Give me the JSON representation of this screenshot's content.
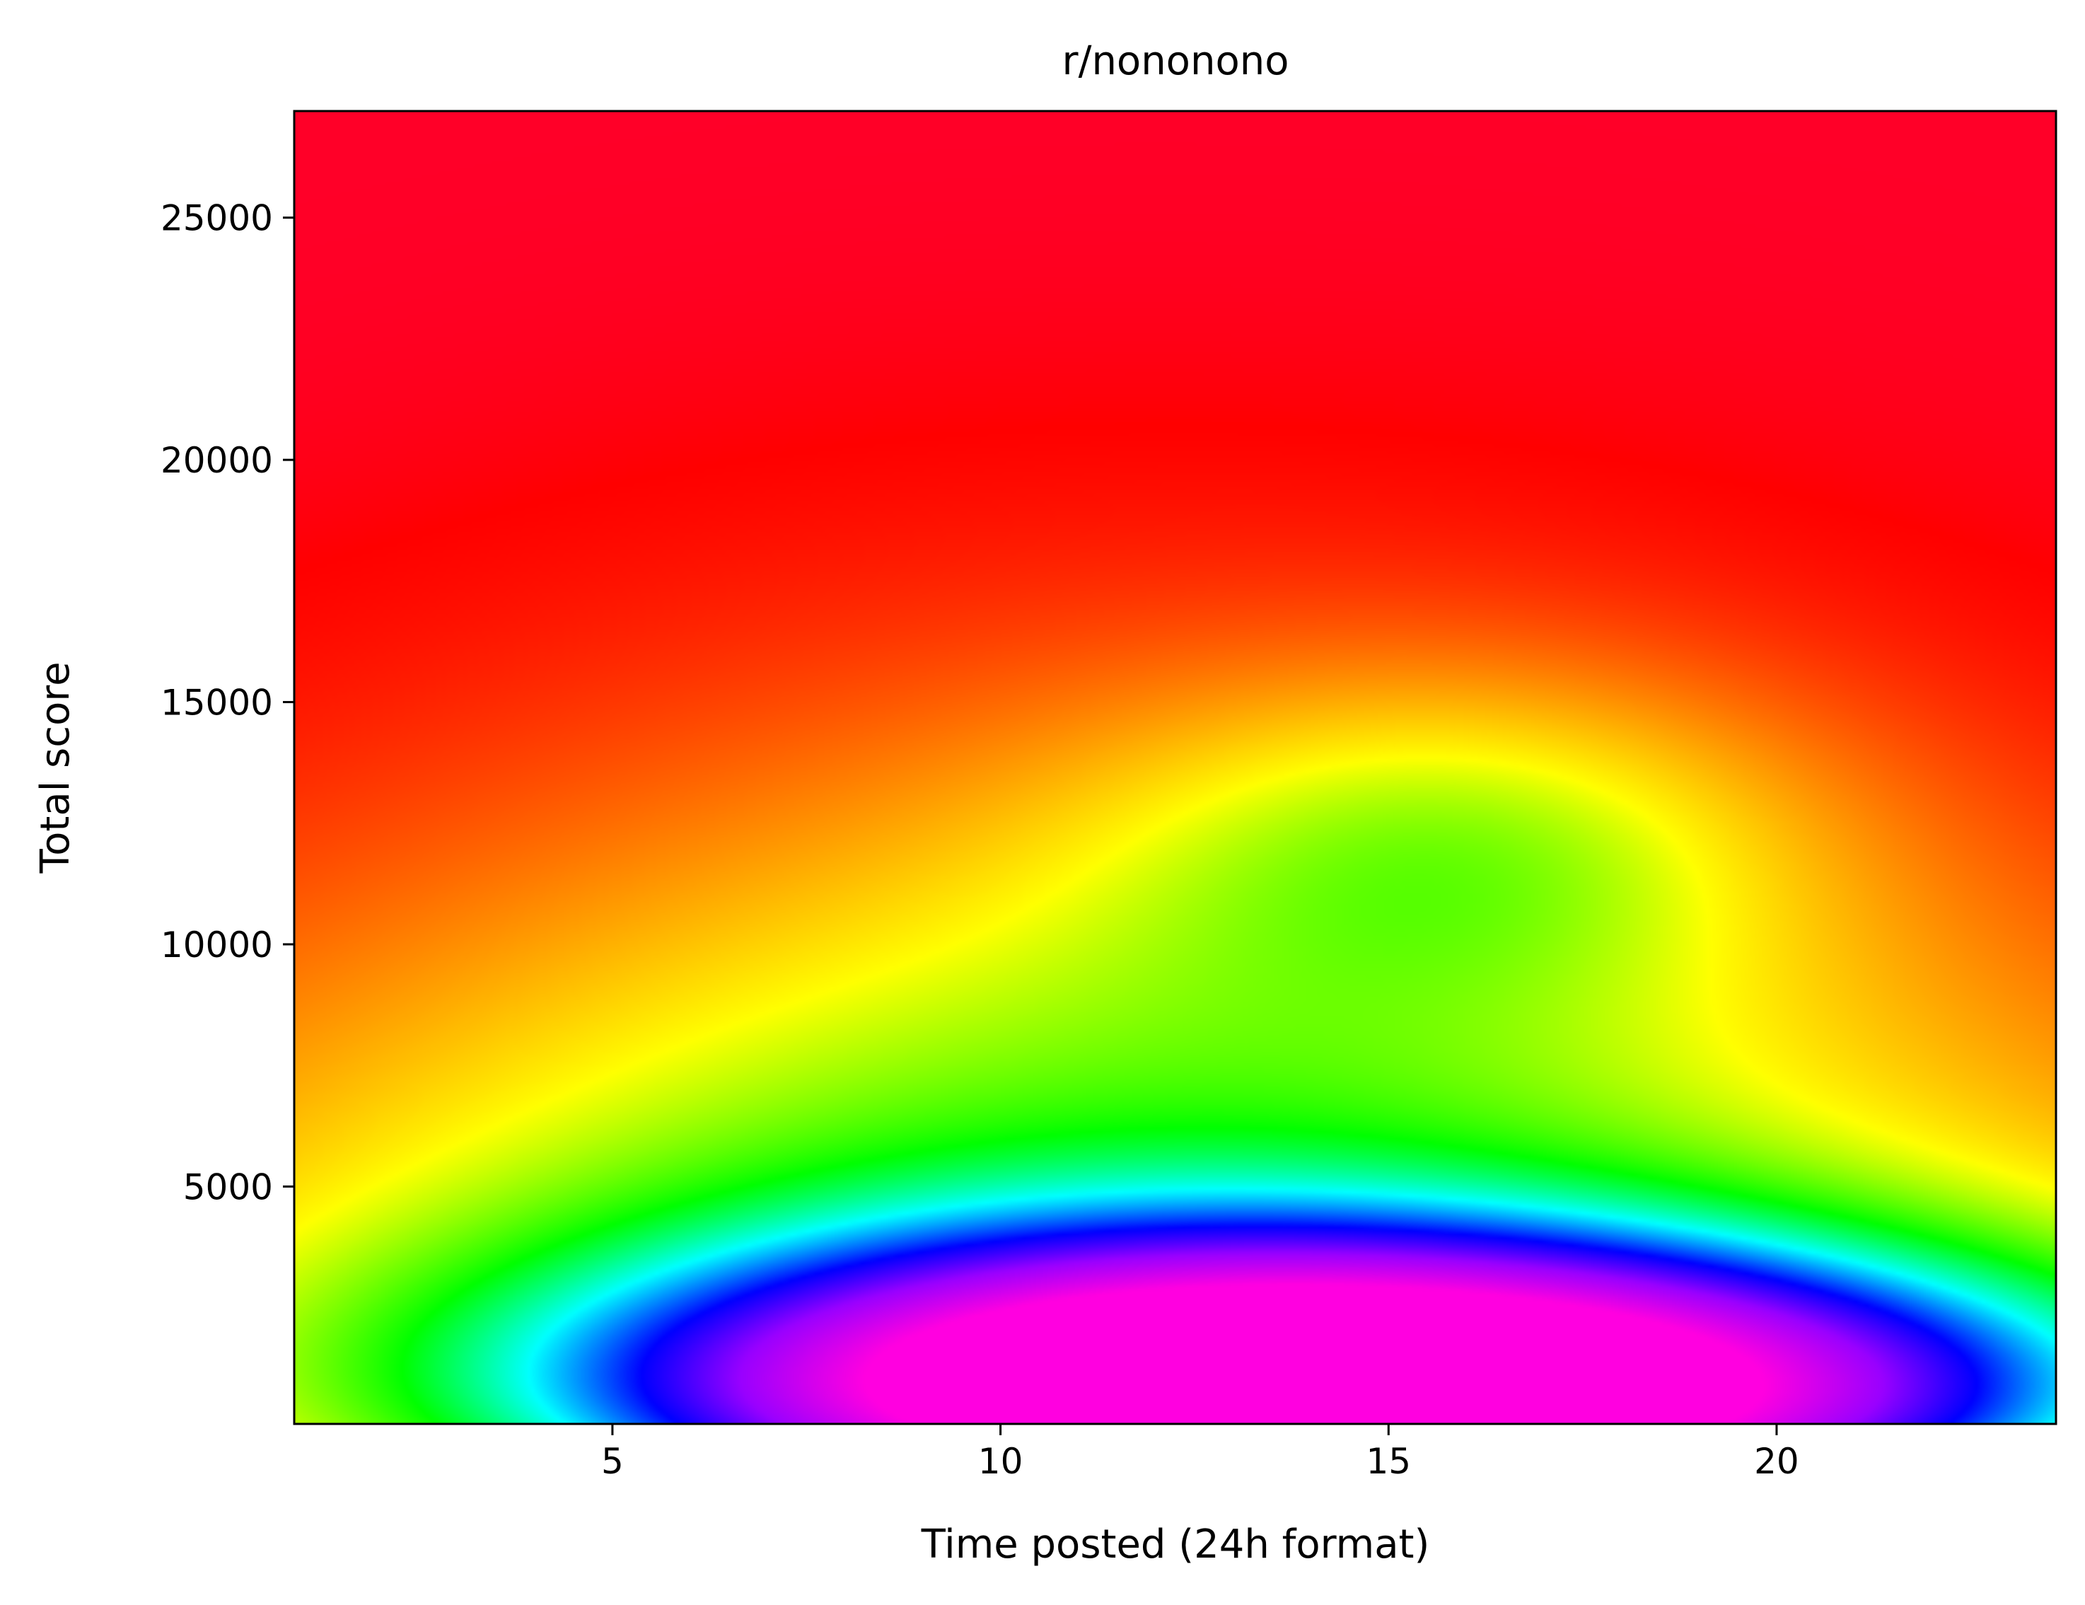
{
  "chart_data": {
    "type": "heatmap",
    "title": "r/nononono",
    "xlabel": "Time posted (24h format)",
    "ylabel": "Total score",
    "xlim": [
      0.9,
      23.6
    ],
    "ylim": [
      100,
      27200
    ],
    "x_ticks": [
      5,
      10,
      15,
      20
    ],
    "x_tick_labels": [
      "5",
      "10",
      "15",
      "20"
    ],
    "y_ticks": [
      5000,
      10000,
      15000,
      20000,
      25000
    ],
    "y_tick_labels": [
      "5000",
      "10000",
      "15000",
      "20000",
      "25000"
    ],
    "colormap": "gist_rainbow",
    "colormap_stops": [
      {
        "v": 0.0,
        "color": "#ff0029"
      },
      {
        "v": 0.02,
        "color": "#ff0000"
      },
      {
        "v": 0.3,
        "color": "#ffff00"
      },
      {
        "v": 0.47,
        "color": "#00ff00"
      },
      {
        "v": 0.6,
        "color": "#00ffff"
      },
      {
        "v": 0.73,
        "color": "#0000ff"
      },
      {
        "v": 0.85,
        "color": "#9900ff"
      },
      {
        "v": 1.0,
        "color": "#ff00e0"
      }
    ],
    "grid": false,
    "legend": "none",
    "density_features": [
      {
        "x": 14.5,
        "y": 900,
        "peak": "highest",
        "color": "#ff00e0"
      },
      {
        "x": 16.0,
        "y": 12200,
        "peak": "secondary",
        "color": "#e0ff00"
      }
    ]
  }
}
